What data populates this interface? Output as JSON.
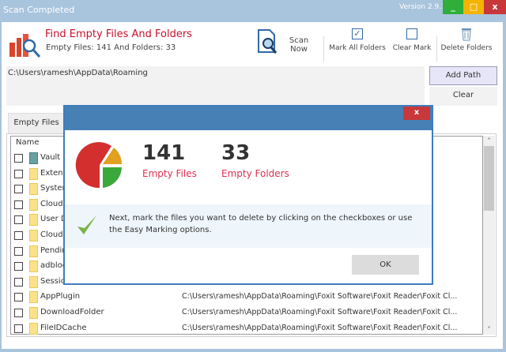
{
  "window": {
    "title": "Scan Completed",
    "version": "Version 2.9.1",
    "minimize": "_",
    "maximize": "□",
    "close": "x"
  },
  "header": {
    "title": "Find Empty Files And Folders",
    "subtitle": "Empty Files: 141 And Folders: 33"
  },
  "toolbar": {
    "scan_now": "Scan Now",
    "mark_all": "Mark All Folders",
    "clear_mark": "Clear Mark",
    "delete": "Delete Folders"
  },
  "path": {
    "value": "C:\\Users\\ramesh\\AppData\\Roaming",
    "add_path": "Add Path",
    "clear": "Clear"
  },
  "tabs": [
    {
      "label": "Empty Files"
    }
  ],
  "list": {
    "header_name": "Name",
    "rows": [
      {
        "name": "Vault",
        "path": ""
      },
      {
        "name": "Extensi",
        "path": ""
      },
      {
        "name": "System",
        "path": ""
      },
      {
        "name": "CloudI",
        "path": ""
      },
      {
        "name": "User D",
        "path": ""
      },
      {
        "name": "CloudS",
        "path": ""
      },
      {
        "name": "Pendin",
        "path": ""
      },
      {
        "name": "adbloc",
        "path": ""
      },
      {
        "name": "Sessio",
        "path": ""
      },
      {
        "name": "AppPlugin",
        "path": "C:\\Users\\ramesh\\AppData\\Roaming\\Foxit Software\\Foxit Reader\\Foxit Cl..."
      },
      {
        "name": "DownloadFolder",
        "path": "C:\\Users\\ramesh\\AppData\\Roaming\\Foxit Software\\Foxit Reader\\Foxit Cl..."
      },
      {
        "name": "FileIDCache",
        "path": "C:\\Users\\ramesh\\AppData\\Roaming\\Foxit Software\\Foxit Reader\\Foxit Cl..."
      }
    ]
  },
  "dialog": {
    "close": "x",
    "files_count": "141",
    "files_label": "Empty Files",
    "folders_count": "33",
    "folders_label": "Empty Folders",
    "message": "Next, mark the files you want to delete by clicking on the checkboxes or use the Easy Marking options.",
    "ok": "OK"
  },
  "colors": {
    "titlebar": "#a9c4dd",
    "dialog_title": "#4680b5",
    "accent_red": "#c8102e",
    "close_red": "#c8383a"
  }
}
